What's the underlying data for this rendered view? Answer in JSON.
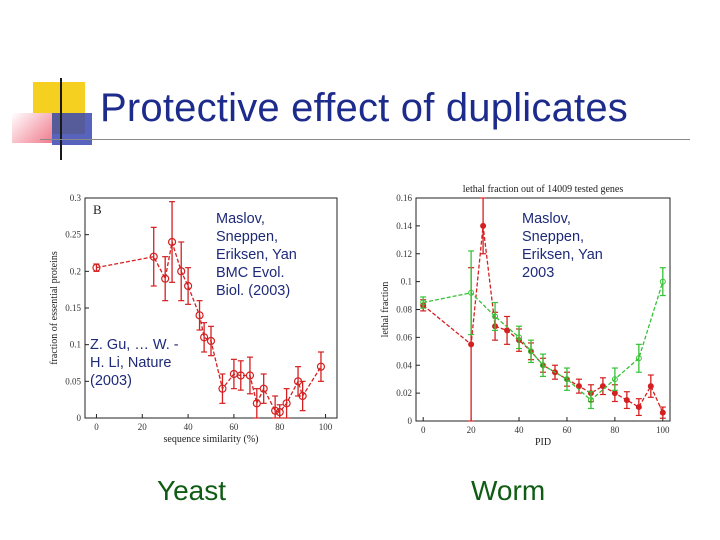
{
  "slide": {
    "title": "Protective effect of duplicates",
    "yeast_label": "Yeast",
    "worm_label": "Worm",
    "note_gu": "Z. Gu, … W. -H. Li, Nature (2003)",
    "note_maslov_evol": "Maslov, Sneppen, Eriksen, Yan BMC Evol. Biol. (2003)",
    "note_maslov_2003": "Maslov, Sneppen, Eriksen, Yan 2003"
  },
  "colors": {
    "title": "#1c2b8c",
    "caption": "#0f5c12",
    "red_series": "#d42020",
    "green_series": "#36c236",
    "deco_yellow": "#f5d020",
    "deco_blue": "#2c3a9e",
    "deco_pink": "#f07a8c"
  },
  "chart_data": [
    {
      "type": "line",
      "panel_label": "B",
      "title": "",
      "xlabel": "sequence similarity (%)",
      "ylabel": "fraction of essential proteins",
      "xlim": [
        -5,
        105
      ],
      "ylim": [
        0,
        0.3
      ],
      "xticks": [
        "0",
        "20",
        "40",
        "60",
        "80",
        "100"
      ],
      "xtick_values": [
        0,
        20,
        40,
        60,
        80,
        100
      ],
      "yticks": [
        "0",
        "0.05",
        "0.1",
        "0.15",
        "0.2",
        "0.25",
        "0.3"
      ],
      "ytick_values": [
        0,
        0.05,
        0.1,
        0.15,
        0.2,
        0.25,
        0.3
      ],
      "series": [
        {
          "name": "yeast",
          "x": [
            0,
            25,
            30,
            33,
            37,
            40,
            45,
            47,
            50,
            55,
            60,
            63,
            67,
            70,
            73,
            78,
            80,
            83,
            88,
            90,
            98
          ],
          "y": [
            0.205,
            0.22,
            0.19,
            0.24,
            0.2,
            0.18,
            0.14,
            0.11,
            0.105,
            0.04,
            0.06,
            0.058,
            0.058,
            0.02,
            0.04,
            0.01,
            0.008,
            0.02,
            0.05,
            0.03,
            0.07
          ],
          "err": [
            0.005,
            0.04,
            0.03,
            0.055,
            0.04,
            0.025,
            0.02,
            0.02,
            0.02,
            0.02,
            0.02,
            0.02,
            0.025,
            0.02,
            0.02,
            0.02,
            0.01,
            0.02,
            0.02,
            0.02,
            0.02
          ]
        }
      ]
    },
    {
      "type": "line",
      "title": "lethal fraction out of 14009 tested genes",
      "xlabel": "PID",
      "ylabel": "lethal fraction",
      "xlim": [
        -3,
        103
      ],
      "ylim": [
        0,
        0.16
      ],
      "xticks": [
        "0",
        "20",
        "40",
        "60",
        "80",
        "100"
      ],
      "xtick_values": [
        0,
        20,
        40,
        60,
        80,
        100
      ],
      "yticks": [
        "0",
        "0.02",
        "0.04",
        "0.06",
        "0.08",
        "0.1",
        "0.12",
        "0.14",
        "0.16"
      ],
      "ytick_values": [
        0,
        0.02,
        0.04,
        0.06,
        0.08,
        0.1,
        0.12,
        0.14,
        0.16
      ],
      "series": [
        {
          "name": "red",
          "x": [
            0,
            20,
            25,
            30,
            35,
            40,
            45,
            50,
            55,
            60,
            65,
            70,
            75,
            80,
            85,
            90,
            95,
            100
          ],
          "y": [
            0.083,
            0.055,
            0.14,
            0.068,
            0.065,
            0.058,
            0.05,
            0.04,
            0.035,
            0.03,
            0.025,
            0.02,
            0.025,
            0.02,
            0.015,
            0.01,
            0.025,
            0.006
          ],
          "err": [
            0.004,
            0.055,
            0.02,
            0.01,
            0.01,
            0.008,
            0.006,
            0.005,
            0.005,
            0.005,
            0.005,
            0.006,
            0.006,
            0.006,
            0.006,
            0.006,
            0.008,
            0.004
          ]
        },
        {
          "name": "green",
          "x": [
            0,
            20,
            30,
            40,
            45,
            50,
            60,
            70,
            80,
            90,
            100
          ],
          "y": [
            0.085,
            0.092,
            0.075,
            0.06,
            0.05,
            0.04,
            0.03,
            0.015,
            0.03,
            0.045,
            0.1
          ],
          "err": [
            0.004,
            0.03,
            0.01,
            0.008,
            0.008,
            0.008,
            0.008,
            0.006,
            0.008,
            0.01,
            0.01
          ]
        }
      ]
    }
  ]
}
